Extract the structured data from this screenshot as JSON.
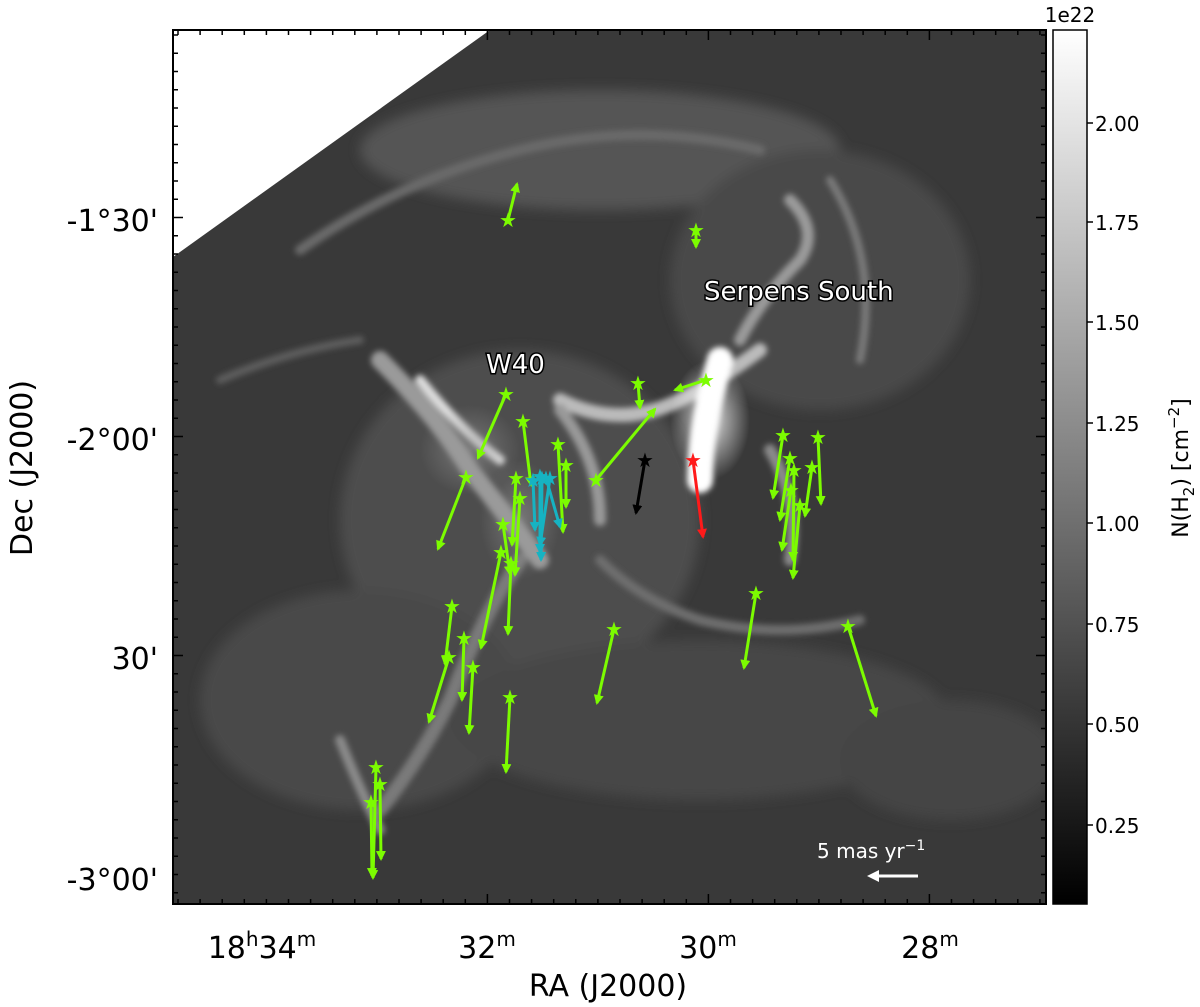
{
  "figure": {
    "xlabel": "RA (J2000)",
    "ylabel": "Dec (J2000)",
    "x_ticks": [
      {
        "h": "18",
        "m": "34"
      },
      {
        "h": "",
        "m": "32"
      },
      {
        "h": "",
        "m": "30"
      },
      {
        "h": "",
        "m": "28"
      }
    ],
    "y_ticks": [
      "-1°30'",
      "-2°00'",
      "30'",
      "-3°00'"
    ],
    "colorbar": {
      "label": "N(H",
      "label_sub": "2",
      "label_unit": ") [cm",
      "label_exp": "−2",
      "label_close": "]",
      "multiplier": "1e22",
      "ticks": [
        "2.00",
        "1.75",
        "1.50",
        "1.25",
        "1.00",
        "0.75",
        "0.50",
        "0.25"
      ],
      "gradient_top": "#ffffff",
      "gradient_bottom": "#000000"
    },
    "annotations": {
      "serpens": "Serpens South",
      "w40": "W40",
      "scale_bar": "5 mas yr",
      "scale_bar_exp": "−1"
    },
    "colors": {
      "green": "#7cfc00",
      "cyan": "#16b3c2",
      "black": "#000000",
      "red": "#ff1a1a",
      "background": "#3a3a3a"
    }
  }
}
